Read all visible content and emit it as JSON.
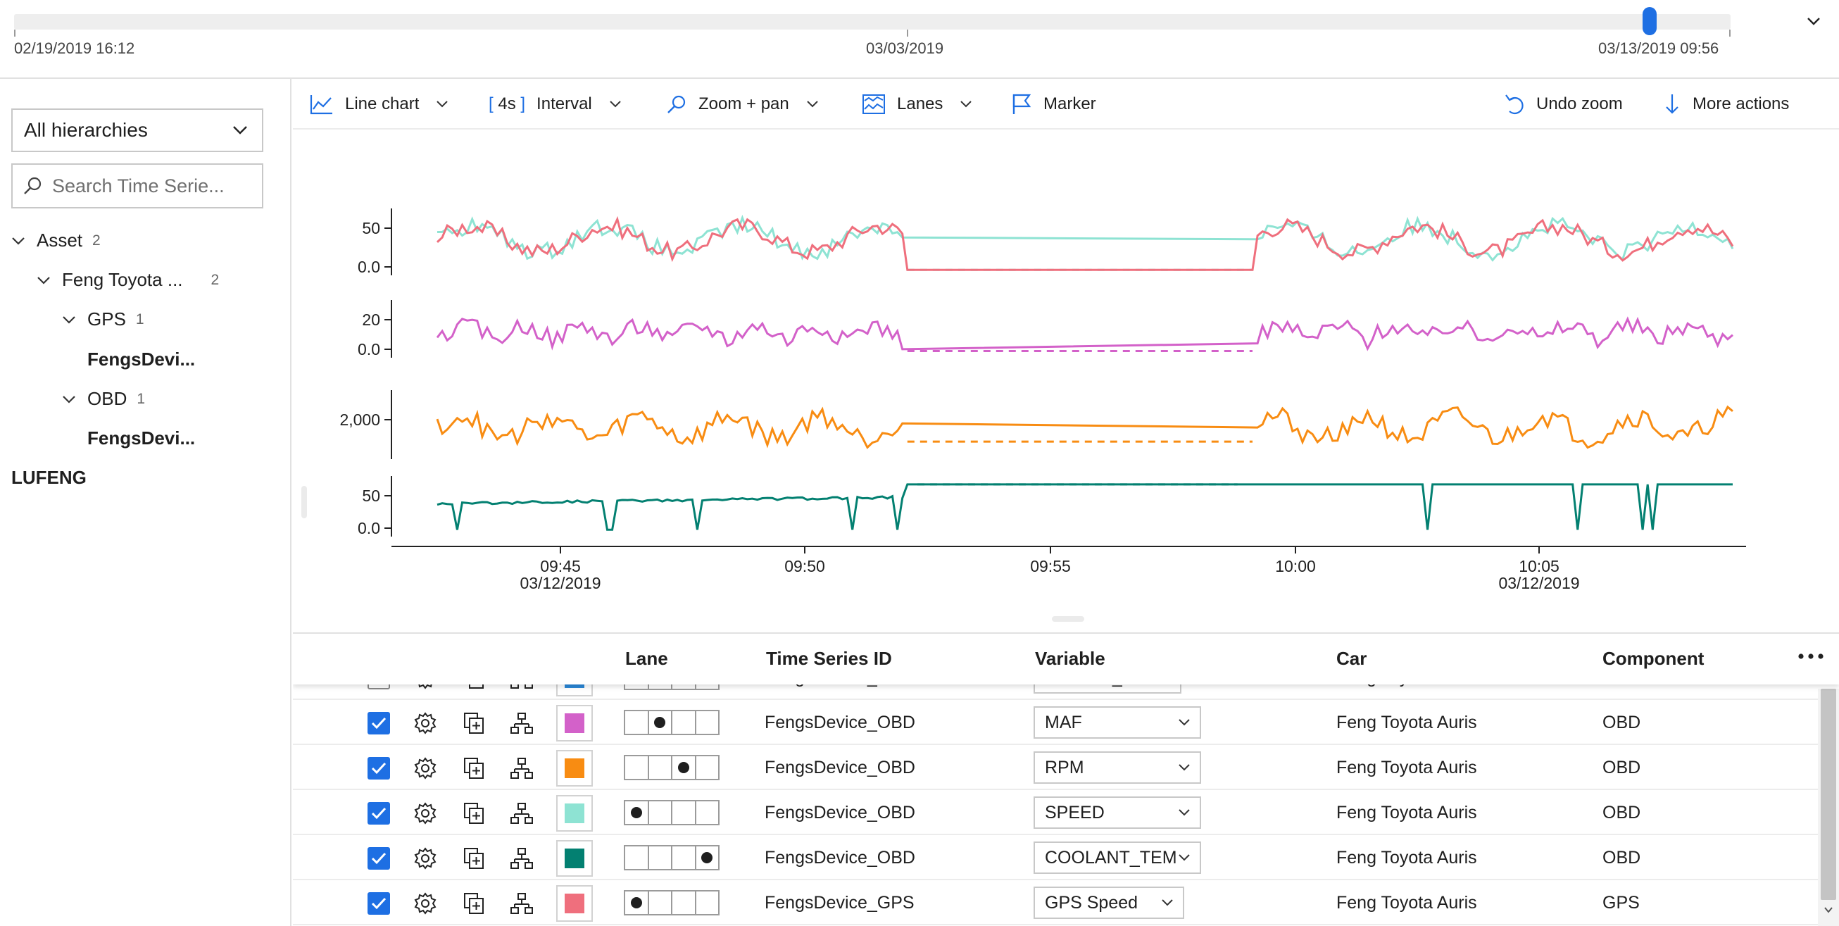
{
  "timebar": {
    "start_label": "02/19/2019 16:12",
    "mid_label": "03/03/2019",
    "end_label": "03/13/2019 09:56"
  },
  "left_panel": {
    "hierarchy_select": "All hierarchies",
    "search_placeholder": "Search Time Serie...",
    "tree": {
      "asset": {
        "label": "Asset",
        "count": "2"
      },
      "car": {
        "label": "Feng Toyota ...",
        "count": "2"
      },
      "gps": {
        "label": "GPS",
        "count": "1"
      },
      "gps_leaf": "FengsDevi...",
      "obd": {
        "label": "OBD",
        "count": "1"
      },
      "obd_leaf": "FengsDevi...",
      "lufeng": "LUFENG"
    }
  },
  "toolbar": {
    "line_chart": "Line chart",
    "interval_value": "4s",
    "interval": "Interval",
    "zoom_pan": "Zoom + pan",
    "lanes": "Lanes",
    "marker": "Marker",
    "undo_zoom": "Undo zoom",
    "more_actions": "More actions"
  },
  "chart_data": {
    "type": "line",
    "x_ticks": [
      {
        "time": "09:45",
        "date": "03/12/2019"
      },
      {
        "time": "09:50",
        "date": ""
      },
      {
        "time": "09:55",
        "date": ""
      },
      {
        "time": "10:00",
        "date": ""
      },
      {
        "time": "10:05",
        "date": "03/12/2019"
      }
    ],
    "lanes": [
      {
        "series": [
          "SPEED",
          "GPS Speed"
        ],
        "y_ticks": [
          "50",
          "0.0"
        ],
        "ylim": [
          0,
          70
        ]
      },
      {
        "series": [
          "MAF"
        ],
        "y_ticks": [
          "20",
          "0.0"
        ],
        "ylim": [
          0,
          30
        ]
      },
      {
        "series": [
          "RPM"
        ],
        "y_ticks": [
          "2,000"
        ],
        "ylim": [
          0,
          3500
        ]
      },
      {
        "series": [
          "COOLANT_TEM"
        ],
        "y_ticks": [
          "50",
          "0.0"
        ],
        "ylim": [
          0,
          90
        ]
      }
    ],
    "series": [
      {
        "name": "SPEED",
        "color": "#8ee3d3"
      },
      {
        "name": "GPS Speed",
        "color": "#ef6f7d"
      },
      {
        "name": "MAF",
        "color": "#d361c9"
      },
      {
        "name": "RPM",
        "color": "#f88c12"
      },
      {
        "name": "COOLANT_TEM",
        "color": "#038071"
      }
    ]
  },
  "table": {
    "headers": {
      "lane": "Lane",
      "time_series_id": "Time Series ID",
      "variable": "Variable",
      "car": "Car",
      "component": "Component"
    },
    "rows": [
      {
        "checked": false,
        "color": "#2b88d8",
        "lane": 0,
        "id": "FengsDevice_OBD",
        "variable": "ENGINE_LOAD",
        "car": "Feng Toyota Auris",
        "component": "OBD"
      },
      {
        "checked": true,
        "color": "#d361c9",
        "lane": 1,
        "id": "FengsDevice_OBD",
        "variable": "MAF",
        "car": "Feng Toyota Auris",
        "component": "OBD"
      },
      {
        "checked": true,
        "color": "#f88c12",
        "lane": 2,
        "id": "FengsDevice_OBD",
        "variable": "RPM",
        "car": "Feng Toyota Auris",
        "component": "OBD"
      },
      {
        "checked": true,
        "color": "#8ee3d3",
        "lane": 0,
        "id": "FengsDevice_OBD",
        "variable": "SPEED",
        "car": "Feng Toyota Auris",
        "component": "OBD"
      },
      {
        "checked": true,
        "color": "#038071",
        "lane": 3,
        "id": "FengsDevice_OBD",
        "variable": "COOLANT_TEM",
        "car": "Feng Toyota Auris",
        "component": "OBD"
      },
      {
        "checked": true,
        "color": "#ef6f7d",
        "lane": 0,
        "id": "FengsDevice_GPS",
        "variable": "GPS Speed",
        "car": "Feng Toyota Auris",
        "component": "GPS"
      }
    ]
  }
}
